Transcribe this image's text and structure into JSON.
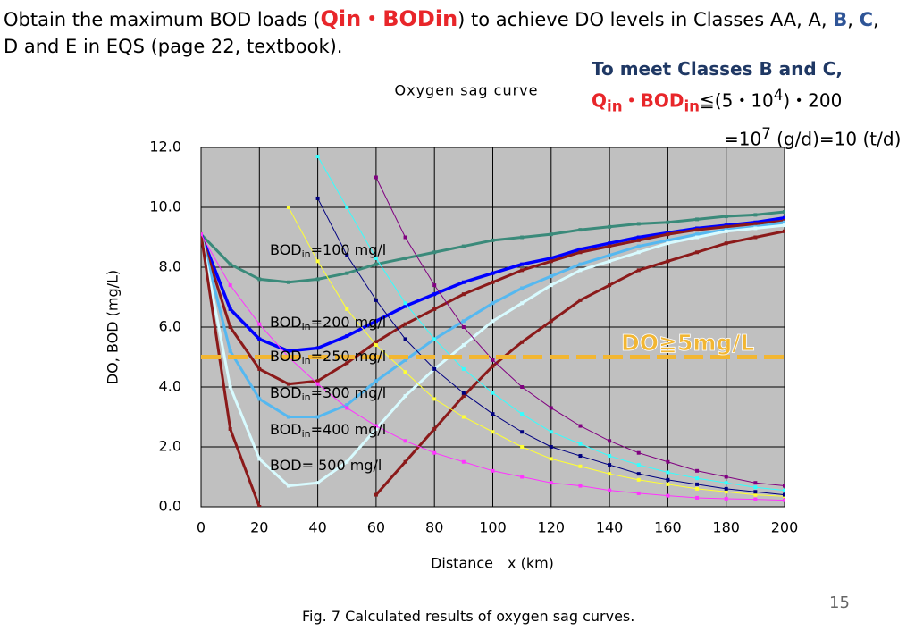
{
  "header": {
    "line1": [
      {
        "text": "Obtain the maximum BOD loads (",
        "color": "#000000"
      },
      {
        "text": "Qin・BODin",
        "color": "#e8262a"
      },
      {
        "text": ") to achieve DO levels in Classes AA, A, ",
        "color": "#000000"
      },
      {
        "text": "B",
        "color": "#2f5597"
      },
      {
        "text": ", ",
        "color": "#000000"
      },
      {
        "text": "C",
        "color": "#2f5597"
      },
      {
        "text": ",",
        "color": "#000000"
      }
    ],
    "line2": "D and E in EQS (page 22, textbook)."
  },
  "note": {
    "line1": "To meet Classes B and C,",
    "q": "Q",
    "q_sub": "in",
    "bod": "・BOD",
    "bod_sub": "in",
    "expr": "≦(5・10",
    "expr_sup": "4",
    "expr_end": ")・200",
    "line3_pre": "=10",
    "line3_sup": "7",
    "line3_end": " (g/d)=10 (t/d)"
  },
  "caption": "Fig. 7 Calculated results of oxygen sag curves.",
  "page_number": "15",
  "chart_data": {
    "type": "line",
    "title": "Oxygen sag curve",
    "x_label": "Distance　x (km)",
    "y_label": "DO, BOD (mg/L)",
    "x": [
      0,
      10,
      20,
      30,
      40,
      50,
      60,
      70,
      80,
      90,
      100,
      110,
      120,
      130,
      140,
      150,
      160,
      170,
      180,
      190,
      200
    ],
    "xlim": [
      0,
      200
    ],
    "xticks": [
      0,
      20,
      40,
      60,
      80,
      100,
      120,
      140,
      160,
      180,
      200
    ],
    "ylim": [
      0,
      12
    ],
    "yticks": [
      {
        "value": 0,
        "label": "0.0"
      },
      {
        "value": 2,
        "label": "2.0"
      },
      {
        "value": 4,
        "label": "4.0"
      },
      {
        "value": 6,
        "label": "6.0"
      },
      {
        "value": 8,
        "label": "8.0"
      },
      {
        "value": 10,
        "label": "10.0"
      },
      {
        "value": 12,
        "label": "12.0"
      }
    ],
    "grid": true,
    "background": "#c0c0c0",
    "series": [
      {
        "color": "#3a8a7a",
        "width": 3,
        "values": [
          9.1,
          8.1,
          7.6,
          7.5,
          7.6,
          7.8,
          8.1,
          8.3,
          8.5,
          8.7,
          8.9,
          9.0,
          9.1,
          9.25,
          9.35,
          9.45,
          9.5,
          9.6,
          9.7,
          9.75,
          9.85
        ]
      },
      {
        "color": "#0000ff",
        "width": 3.5,
        "values": [
          9.1,
          6.6,
          5.6,
          5.2,
          5.3,
          5.7,
          6.2,
          6.7,
          7.1,
          7.5,
          7.8,
          8.1,
          8.3,
          8.6,
          8.8,
          9.0,
          9.15,
          9.3,
          9.4,
          9.5,
          9.65
        ]
      },
      {
        "color": "#8b1a1a",
        "width": 3,
        "values": [
          9.1,
          6.0,
          4.6,
          4.1,
          4.2,
          4.8,
          5.5,
          6.1,
          6.6,
          7.1,
          7.5,
          7.9,
          8.2,
          8.5,
          8.7,
          8.9,
          9.1,
          9.25,
          9.35,
          9.45,
          9.55
        ]
      },
      {
        "color": "#55b8f0",
        "width": 3,
        "values": [
          9.1,
          5.2,
          3.6,
          3.0,
          3.0,
          3.4,
          4.2,
          4.9,
          5.6,
          6.2,
          6.8,
          7.3,
          7.7,
          8.1,
          8.4,
          8.7,
          8.9,
          9.1,
          9.25,
          9.35,
          9.5
        ]
      },
      {
        "color": "#d8fbff",
        "width": 3,
        "values": [
          9.1,
          4.0,
          1.6,
          0.7,
          0.8,
          1.5,
          2.6,
          3.7,
          4.6,
          5.4,
          6.2,
          6.8,
          7.4,
          7.9,
          8.2,
          8.5,
          8.8,
          9.0,
          9.2,
          9.3,
          9.4
        ]
      },
      {
        "color": "#8b1a1a",
        "width": 3,
        "values": [
          9.1,
          2.6,
          0,
          null,
          null,
          null,
          0.4,
          1.5,
          2.6,
          3.7,
          4.7,
          5.5,
          6.2,
          6.9,
          7.4,
          7.9,
          8.2,
          8.5,
          8.8,
          9.0,
          9.2
        ]
      },
      {
        "color": "#ff33ff",
        "width": 1,
        "values": [
          9.1,
          7.4,
          6.1,
          5.0,
          4.1,
          3.3,
          2.7,
          2.2,
          1.8,
          1.5,
          1.2,
          1.0,
          0.8,
          0.7,
          0.55,
          0.45,
          0.37,
          0.3,
          0.27,
          0.25,
          0.22
        ]
      },
      {
        "color": "#ffff33",
        "width": 1,
        "values": [
          null,
          null,
          null,
          10.0,
          8.2,
          6.6,
          5.4,
          4.5,
          3.6,
          3.0,
          2.5,
          2.0,
          1.6,
          1.35,
          1.1,
          0.9,
          0.75,
          0.6,
          0.5,
          0.4,
          0.35
        ]
      },
      {
        "color": "#000080",
        "width": 1,
        "values": [
          null,
          null,
          null,
          null,
          10.3,
          8.4,
          6.9,
          5.6,
          4.6,
          3.8,
          3.1,
          2.5,
          2.0,
          1.7,
          1.4,
          1.1,
          0.9,
          0.75,
          0.6,
          0.5,
          0.4
        ]
      },
      {
        "color": "#33ffff",
        "width": 1,
        "values": [
          null,
          null,
          null,
          null,
          11.7,
          10.0,
          8.3,
          6.8,
          5.6,
          4.6,
          3.8,
          3.1,
          2.5,
          2.1,
          1.7,
          1.4,
          1.15,
          0.95,
          0.8,
          0.65,
          0.55
        ]
      },
      {
        "color": "#800080",
        "width": 1,
        "values": [
          null,
          null,
          null,
          null,
          null,
          null,
          11.0,
          9.0,
          7.4,
          6.0,
          4.9,
          4.0,
          3.3,
          2.7,
          2.2,
          1.8,
          1.5,
          1.2,
          1.0,
          0.8,
          0.7
        ]
      }
    ],
    "annotations": [
      {
        "pre": "BOD",
        "sub": "in",
        "post": "=100 mg/l"
      },
      {
        "pre": "BOD",
        "sub": "in",
        "post": "=200 mg/l"
      },
      {
        "pre": "BOD",
        "sub": "in",
        "post": "=250 mg/l"
      },
      {
        "pre": "BOD",
        "sub": "in",
        "post": "=300 mg/l"
      },
      {
        "pre": "BOD",
        "sub": "in",
        "post": "=400 mg/l"
      },
      {
        "pre": "BOD= 500 mg/l"
      }
    ],
    "threshold": {
      "value": 5,
      "label": "DO≧5mg/L",
      "color": "#f2b632"
    }
  }
}
